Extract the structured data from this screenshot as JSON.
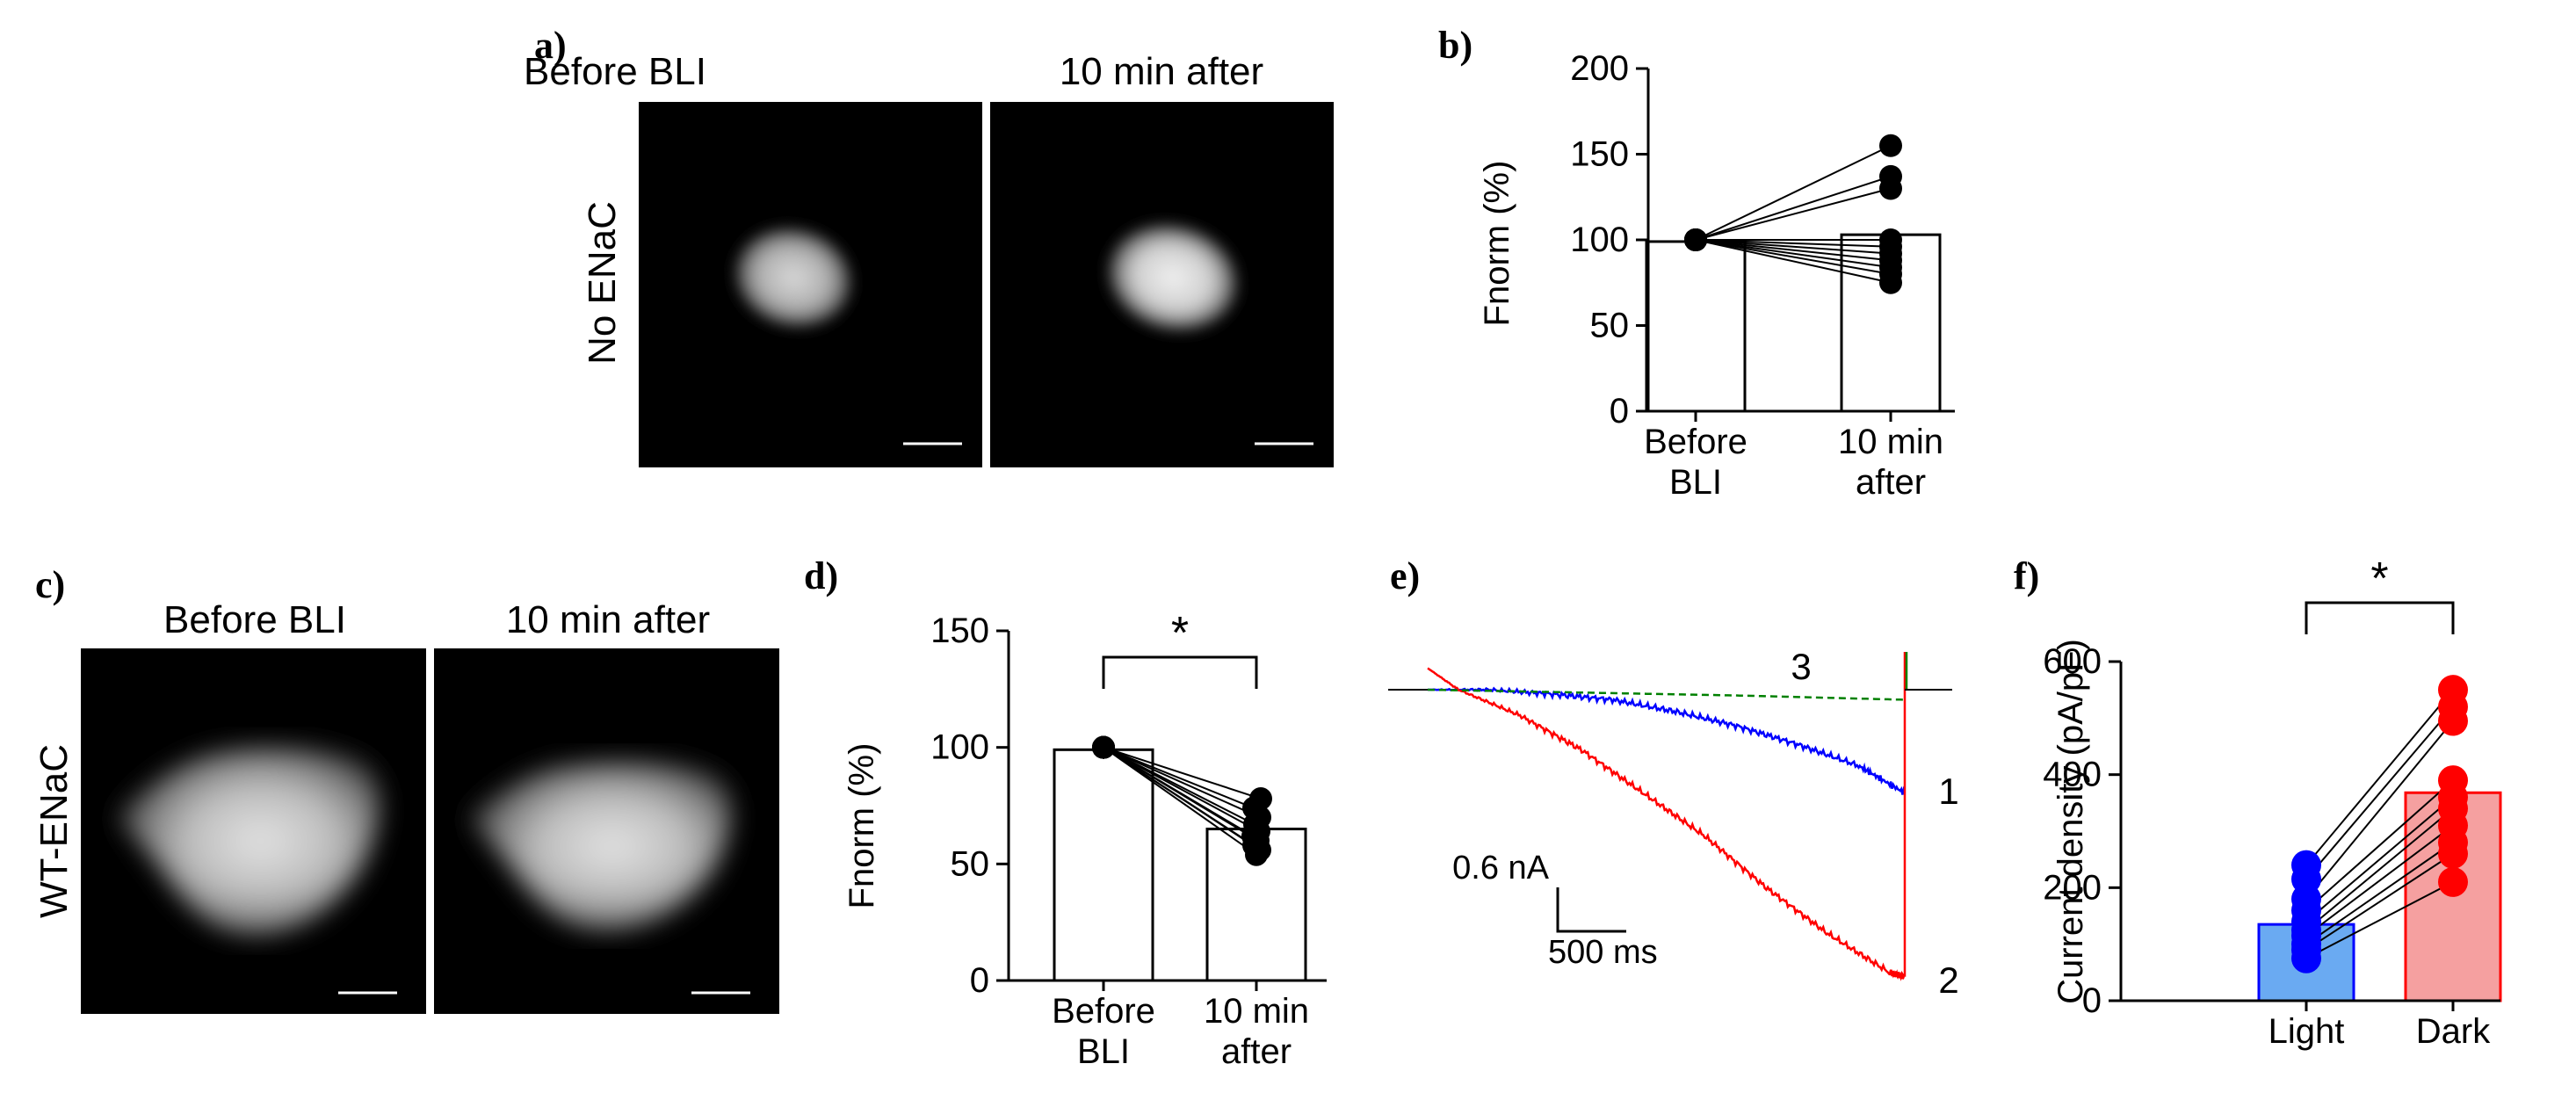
{
  "panel_labels": {
    "a": "a)",
    "b": "b)",
    "c": "c)",
    "d": "d)",
    "e": "e)",
    "f": "f)"
  },
  "panel_a": {
    "row_label": "No ENaC",
    "before_title": "Before BLI",
    "after_title": "10 min after"
  },
  "panel_c": {
    "row_label": "WT-ENaC",
    "before_title": "Before BLI",
    "after_title": "10 min after"
  },
  "colors": {
    "blue": "#0000ff",
    "red": "#ff0000",
    "green": "#008000",
    "bar_light": "#6aaaf2",
    "bar_dark": "#f5a0a0",
    "black": "#000000"
  },
  "chart_data": [
    {
      "id": "b",
      "type": "bar",
      "ylabel": "Fnorm (%)",
      "categories": [
        [
          "Before",
          "BLI"
        ],
        [
          "10 min",
          "after"
        ]
      ],
      "values": [
        99,
        103
      ],
      "ylim": [
        0,
        200
      ],
      "yticks": [
        0,
        50,
        100,
        150,
        200
      ],
      "paired_points": {
        "before": [
          100,
          100,
          100,
          100,
          100,
          100,
          100,
          100,
          100,
          100
        ],
        "after": [
          155,
          137,
          130,
          100,
          96,
          92,
          88,
          84,
          80,
          75
        ]
      }
    },
    {
      "id": "d",
      "type": "bar",
      "ylabel": "Fnorm (%)",
      "categories": [
        [
          "Before",
          "BLI"
        ],
        [
          "10 min",
          "after"
        ]
      ],
      "values": [
        99,
        65
      ],
      "ylim": [
        0,
        150
      ],
      "yticks": [
        0,
        50,
        100,
        150
      ],
      "significance": "*",
      "paired_points": {
        "before": [
          100,
          100,
          100,
          100,
          100,
          100,
          100,
          100,
          100,
          100
        ],
        "after": [
          78,
          74,
          70,
          67,
          64,
          62,
          60,
          58,
          56,
          54
        ]
      }
    },
    {
      "id": "e",
      "type": "line",
      "scale_y_label": "0.6 nA",
      "scale_x_label": "500 ms",
      "trace_labels": [
        "1",
        "2",
        "3"
      ],
      "series": [
        {
          "name": "1",
          "color": "#0000ff",
          "style": "solid",
          "x_ms": [
            0,
            400,
            800,
            1200,
            1600,
            2000,
            2400,
            2800,
            3100
          ],
          "y_nA": [
            0,
            0,
            -0.03,
            -0.07,
            -0.15,
            -0.25,
            -0.38,
            -0.53,
            -0.72
          ]
        },
        {
          "name": "2",
          "color": "#ff0000",
          "style": "solid",
          "x_ms": [
            0,
            200,
            600,
            1000,
            1400,
            1800,
            2200,
            2600,
            3000,
            3100
          ],
          "y_nA": [
            0.15,
            0,
            -0.18,
            -0.42,
            -0.72,
            -1.02,
            -1.38,
            -1.7,
            -1.97,
            -2.0
          ]
        },
        {
          "name": "3",
          "color": "#008000",
          "style": "dashed",
          "x_ms": [
            0,
            1000,
            2000,
            3100
          ],
          "y_nA": [
            0,
            -0.02,
            -0.04,
            -0.07
          ]
        }
      ]
    },
    {
      "id": "f",
      "type": "bar",
      "ylabel": "Current density (pA/pF)",
      "categories": [
        "Light",
        "Dark"
      ],
      "values": [
        135,
        368
      ],
      "ylim": [
        0,
        600
      ],
      "yticks": [
        0,
        200,
        400,
        600
      ],
      "significance": "*",
      "paired_points": {
        "light": [
          240,
          215,
          180,
          160,
          140,
          125,
          115,
          100,
          90,
          75
        ],
        "dark": [
          550,
          520,
          495,
          390,
          360,
          340,
          310,
          280,
          260,
          210
        ]
      }
    }
  ]
}
